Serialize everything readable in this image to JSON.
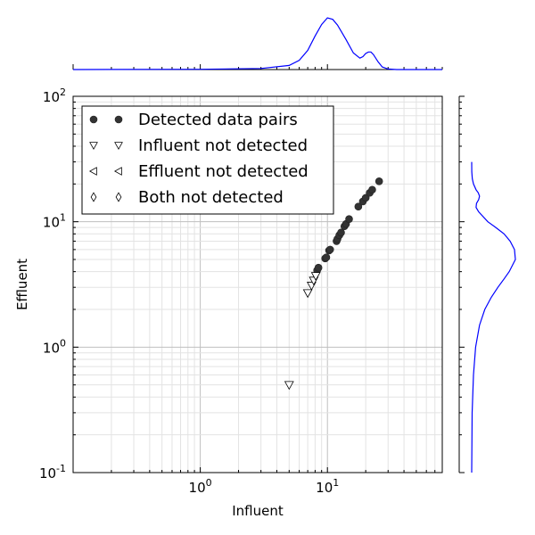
{
  "chart_data": [
    {
      "type": "scatter",
      "title": "",
      "xlabel": "Influent",
      "ylabel": "Effluent",
      "x_scale": "log",
      "y_scale": "log",
      "xlim": [
        0.1,
        80
      ],
      "ylim": [
        0.1,
        100
      ],
      "x_ticks": [
        {
          "value": 1,
          "base": "10",
          "exp": "0"
        },
        {
          "value": 10,
          "base": "10",
          "exp": "1"
        }
      ],
      "y_ticks": [
        {
          "value": 0.1,
          "base": "10",
          "exp": "-1"
        },
        {
          "value": 1,
          "base": "10",
          "exp": "0"
        },
        {
          "value": 10,
          "base": "10",
          "exp": "1"
        },
        {
          "value": 100,
          "base": "10",
          "exp": "2"
        }
      ],
      "grid": true,
      "legend_position": "top-left",
      "series": [
        {
          "name": "Detected data pairs",
          "marker": "circle",
          "color": "#333333",
          "points": [
            [
              8.3,
              4.1
            ],
            [
              8.5,
              4.3
            ],
            [
              9.6,
              5.1
            ],
            [
              9.8,
              5.2
            ],
            [
              10.3,
              5.9
            ],
            [
              10.5,
              6.0
            ],
            [
              11.8,
              7.0
            ],
            [
              12.0,
              7.3
            ],
            [
              12.4,
              7.8
            ],
            [
              12.8,
              8.2
            ],
            [
              13.6,
              9.2
            ],
            [
              14.0,
              9.6
            ],
            [
              14.8,
              10.5
            ],
            [
              17.5,
              13.2
            ],
            [
              19.0,
              14.5
            ],
            [
              20.0,
              15.5
            ],
            [
              21.5,
              17.0
            ],
            [
              22.5,
              18.0
            ],
            [
              25.5,
              21.0
            ]
          ]
        },
        {
          "name": "Influent not detected",
          "marker": "triangle-down",
          "color": "#ffffff",
          "points": [
            [
              5.0,
              0.5
            ],
            [
              7.0,
              2.7
            ],
            [
              7.5,
              3.1
            ],
            [
              7.8,
              3.4
            ],
            [
              8.1,
              3.7
            ]
          ]
        },
        {
          "name": "Effluent not detected",
          "marker": "triangle-left",
          "color": "#ffffff",
          "points": []
        },
        {
          "name": "Both not detected",
          "marker": "diamond",
          "color": "#ffffff",
          "points": []
        }
      ]
    },
    {
      "type": "line",
      "description_role": "top marginal KDE of Influent",
      "x_scale": "log",
      "color": "#0000ff",
      "x": [
        0.1,
        1,
        3,
        5,
        6,
        7,
        8,
        9,
        10,
        11,
        12,
        14,
        16,
        18,
        19,
        20,
        21,
        22,
        23,
        25,
        27,
        30,
        35,
        80
      ],
      "y": [
        0.0,
        0.005,
        0.02,
        0.08,
        0.18,
        0.37,
        0.65,
        0.87,
        1.0,
        0.97,
        0.86,
        0.58,
        0.32,
        0.22,
        0.25,
        0.31,
        0.34,
        0.34,
        0.29,
        0.15,
        0.05,
        0.01,
        0.0,
        0.0
      ]
    },
    {
      "type": "line",
      "description_role": "right marginal KDE of Effluent",
      "y_scale": "log",
      "color": "#0000ff",
      "y": [
        0.1,
        0.3,
        0.6,
        1.0,
        1.5,
        2.0,
        2.5,
        3.0,
        3.5,
        4.0,
        5.0,
        6.0,
        7.0,
        8.0,
        9.0,
        10.0,
        12.0,
        13.0,
        14.0,
        15.0,
        16.0,
        17.0,
        18.0,
        20.0,
        22.0,
        25.0,
        30.0
      ],
      "x": [
        0.0,
        0.01,
        0.04,
        0.09,
        0.18,
        0.3,
        0.45,
        0.6,
        0.74,
        0.86,
        1.0,
        0.98,
        0.88,
        0.74,
        0.55,
        0.37,
        0.16,
        0.1,
        0.11,
        0.16,
        0.18,
        0.15,
        0.1,
        0.04,
        0.015,
        0.003,
        0.0
      ]
    }
  ]
}
